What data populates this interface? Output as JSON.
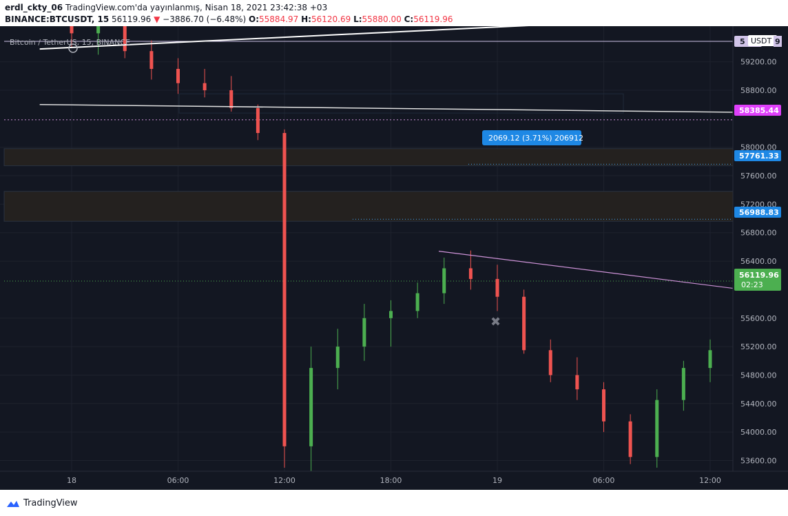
{
  "header": {
    "author": "erdl_ckty_06",
    "publish_text": "TradingView.com'da yayınlanmış, Nisan 18, 2021 23:42:38 +03",
    "symbol": "BINANCE:BTCUSDT, 15",
    "last": "56119.96",
    "change": "−3886.70 (−6.48%)",
    "o_label": "O:",
    "o_value": "55884.97",
    "h_label": "H:",
    "h_value": "56120.69",
    "l_label": "L:",
    "l_value": "55880.00",
    "c_label": "C:",
    "c_value": "56119.96"
  },
  "legend_title": "Bitcoin / TetherUS, 15, BINANCE",
  "currency_badge": "USDT",
  "price_labels": {
    "top_partial": "5",
    "top_partial_right": "9",
    "level_magenta": "58385.44",
    "level_target": "57761.33",
    "level_entry": "56988.83",
    "current_price": "56119.96",
    "countdown": "02:23"
  },
  "measure_label": "2069.12 (3.71%) 206912",
  "footer": {
    "brand": "TradingView"
  },
  "colors": {
    "bg": "#131722",
    "up": "#4caf50",
    "down": "#ef5350",
    "magenta": "#e040fb",
    "blue_label": "#2962ff",
    "current": "#4caf50"
  },
  "chart_data": {
    "type": "candlestick",
    "title": "Bitcoin / TetherUS, 15, BINANCE",
    "interval": "15",
    "y_ticks": [
      59200,
      58800,
      58000,
      57600,
      57200,
      56800,
      56400,
      55600,
      55200,
      54800,
      54400,
      54000,
      53600
    ],
    "x_ticks": [
      "18",
      "06:00",
      "12:00",
      "18:00",
      "19",
      "06:00",
      "12:00"
    ],
    "ylim": [
      53450,
      59700
    ],
    "candles": [
      [
        0,
        59780,
        59950,
        59400,
        59600
      ],
      [
        0.25,
        59600,
        59900,
        59300,
        59800
      ],
      [
        0.5,
        59800,
        59850,
        59250,
        59350
      ],
      [
        0.75,
        59350,
        59500,
        58950,
        59100
      ],
      [
        1,
        59100,
        59250,
        58750,
        58900
      ],
      [
        1.25,
        58900,
        59100,
        58700,
        58800
      ],
      [
        1.5,
        58800,
        59000,
        58500,
        58550
      ],
      [
        1.75,
        58550,
        58600,
        58100,
        58200
      ],
      [
        2,
        58200,
        58250,
        53500,
        53800
      ],
      [
        2.25,
        53800,
        55200,
        53450,
        54900
      ],
      [
        2.5,
        54900,
        55450,
        54600,
        55200
      ],
      [
        2.75,
        55200,
        55800,
        55000,
        55600
      ],
      [
        3,
        55600,
        55850,
        55200,
        55700
      ],
      [
        3.25,
        55700,
        56100,
        55600,
        55950
      ],
      [
        3.5,
        55950,
        56450,
        55800,
        56300
      ],
      [
        3.75,
        56300,
        56550,
        56000,
        56150
      ],
      [
        4,
        56150,
        56350,
        55700,
        55900
      ],
      [
        4.25,
        55900,
        56000,
        55100,
        55150
      ],
      [
        4.5,
        55150,
        55300,
        54700,
        54800
      ],
      [
        4.75,
        54800,
        55050,
        54450,
        54600
      ],
      [
        5,
        54600,
        54700,
        54000,
        54150
      ],
      [
        5.25,
        54150,
        54250,
        53550,
        53650
      ],
      [
        5.5,
        53650,
        54600,
        53500,
        54450
      ],
      [
        5.75,
        54450,
        55000,
        54300,
        54900
      ],
      [
        6,
        54900,
        55300,
        54700,
        55150
      ],
      [
        6.25,
        55150,
        55500,
        55000,
        55350
      ],
      [
        6.5,
        55350,
        55950,
        55250,
        55800
      ],
      [
        6.75,
        55800,
        55850,
        55300,
        55400
      ],
      [
        7,
        55400,
        55700,
        55200,
        55600
      ],
      [
        7.25,
        55600,
        55900,
        55500,
        55850
      ],
      [
        7.5,
        55850,
        55950,
        55500,
        55550
      ],
      [
        7.75,
        55550,
        55700,
        55200,
        55300
      ],
      [
        8,
        55300,
        55450,
        55050,
        55150
      ],
      [
        8.25,
        55150,
        55400,
        55000,
        55350
      ],
      [
        8.5,
        55350,
        55750,
        55250,
        55700
      ],
      [
        8.75,
        55700,
        56000,
        55650,
        55950
      ],
      [
        9,
        55950,
        56150,
        55890,
        56120
      ]
    ],
    "trendlines": [
      {
        "name": "upper-white",
        "from": [
          -0.3,
          59380
        ],
        "to": [
          5,
          59760
        ]
      },
      {
        "name": "mid-white",
        "from": [
          -0.3,
          58600
        ],
        "to": [
          11.7,
          58400
        ]
      },
      {
        "name": "pink-descending",
        "from": [
          3.45,
          56540
        ],
        "to": [
          11.3,
          55060
        ]
      }
    ],
    "levels": [
      {
        "name": "magenta",
        "value": 58385.44
      },
      {
        "name": "target",
        "value": 57761.33
      },
      {
        "name": "entry",
        "value": 56988.83
      },
      {
        "name": "current",
        "value": 56119.96
      }
    ],
    "zones": [
      {
        "name": "upper-zone",
        "from": 57740,
        "to": 57980
      },
      {
        "name": "lower-zone",
        "from": 56960,
        "to": 57380
      }
    ],
    "measure": {
      "x_from": 9.3,
      "x_to": 10.2,
      "y_from": 55710,
      "y_to": 57761.33
    }
  }
}
